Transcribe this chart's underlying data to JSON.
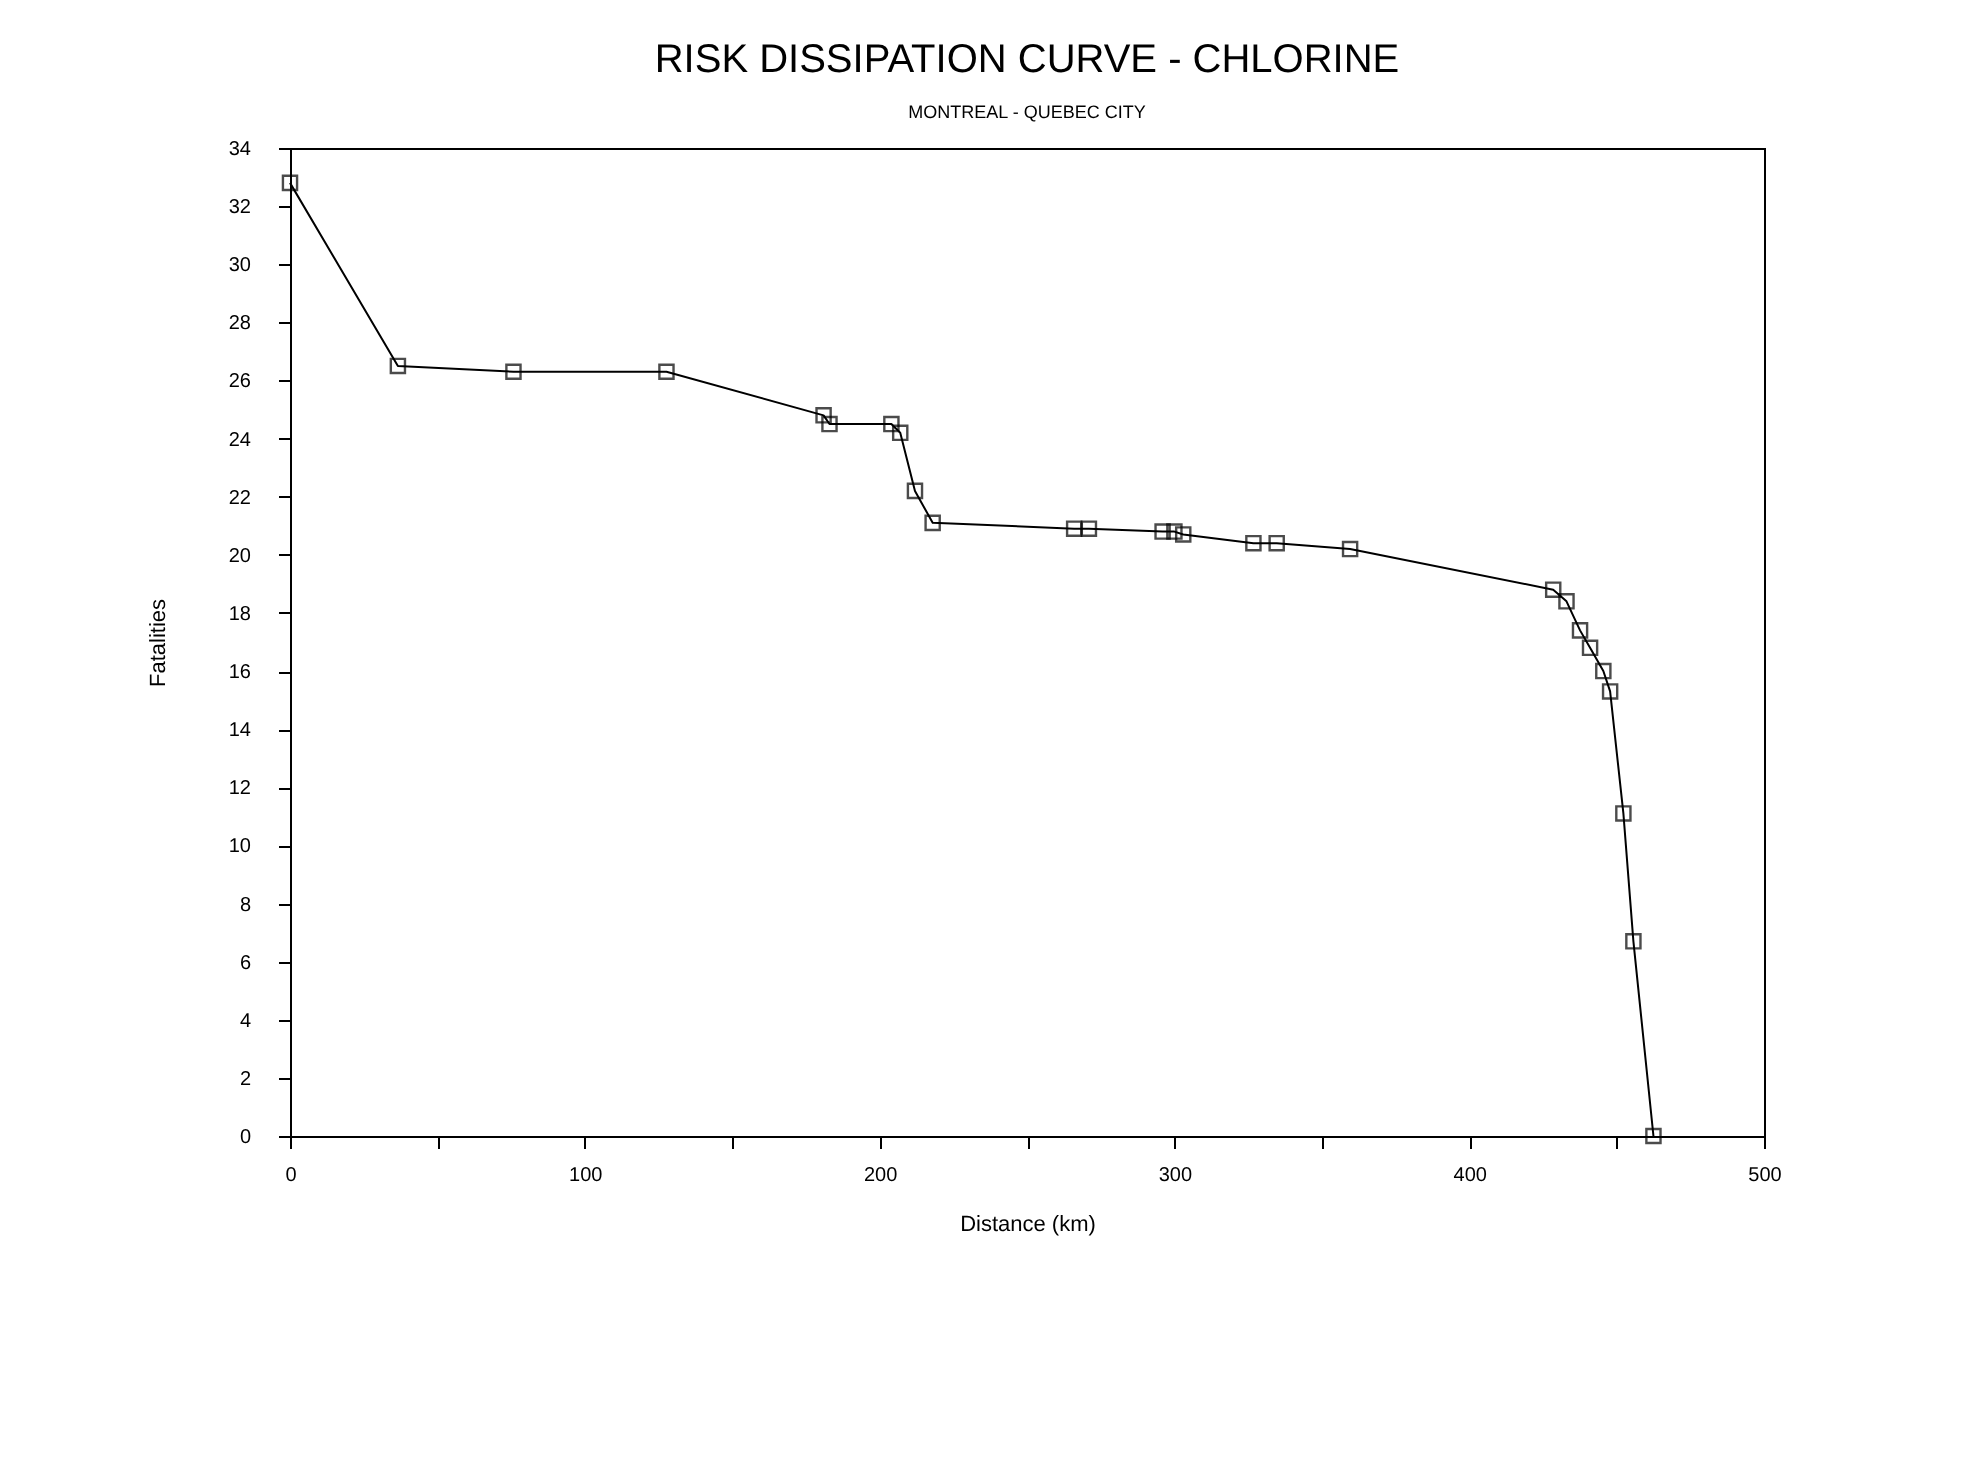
{
  "chart_data": {
    "type": "line",
    "title": "RISK DISSIPATION CURVE - CHLORINE",
    "subtitle": "MONTREAL - QUEBEC CITY",
    "xlabel": "Distance (km)",
    "ylabel": "Fatalities",
    "x": [
      0,
      36.6,
      75.8,
      127.7,
      181,
      183,
      204,
      207,
      212,
      218,
      266,
      271,
      296,
      300,
      303,
      326.8,
      334.7,
      359.6,
      428.5,
      433,
      437.6,
      441,
      445.5,
      447.8,
      452.3,
      455.7,
      462.5
    ],
    "series": [
      {
        "color": "#000000",
        "values": [
          32.8,
          26.5,
          26.3,
          26.3,
          24.8,
          24.5,
          24.5,
          24.2,
          22.2,
          21.1,
          20.9,
          20.9,
          20.8,
          20.8,
          20.7,
          20.4,
          20.4,
          20.2,
          18.8,
          18.4,
          17.4,
          16.8,
          16.0,
          15.3,
          11.1,
          6.7,
          0
        ]
      }
    ],
    "xlim": [
      0,
      500
    ],
    "xticks": [
      0,
      {
        "value": 50,
        "label": null
      },
      100,
      {
        "value": 150,
        "label": null
      },
      200,
      {
        "value": 250,
        "label": null
      },
      300,
      {
        "value": 350,
        "label": null
      },
      400,
      {
        "value": 450,
        "label": null
      },
      500
    ],
    "ylim": [
      0,
      34
    ],
    "yticks": [
      0,
      2,
      4,
      6,
      8,
      10,
      12,
      14,
      16,
      18,
      20,
      22,
      24,
      26,
      28,
      30,
      32,
      34
    ],
    "grid": false,
    "legend": false,
    "marker": "square",
    "line_style": "solid"
  }
}
